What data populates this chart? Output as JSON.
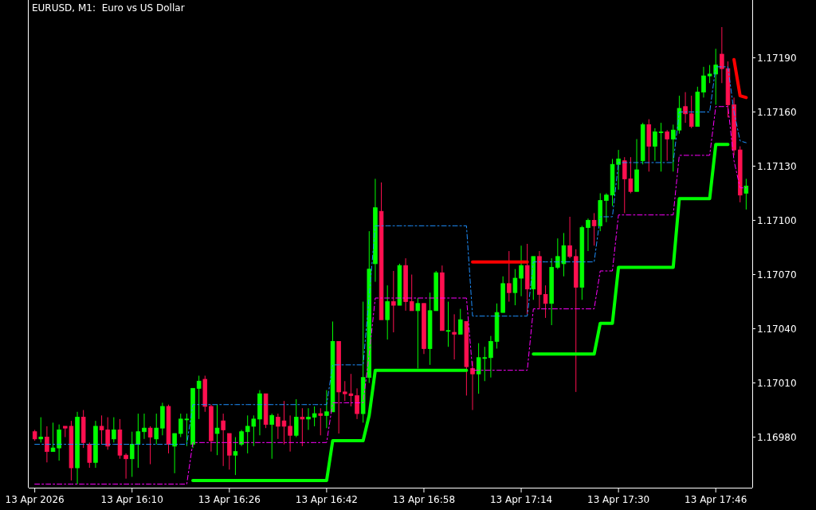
{
  "chart_data": {
    "type": "candlestick",
    "title": "EURUSD, M1:  Euro vs US Dollar",
    "x": [
      "2026-04-13T15:54",
      "2026-04-13T15:55",
      "2026-04-13T15:56",
      "2026-04-13T15:57",
      "2026-04-13T15:58",
      "2026-04-13T15:59",
      "2026-04-13T16:00",
      "2026-04-13T16:01",
      "2026-04-13T16:02",
      "2026-04-13T16:03",
      "2026-04-13T16:04",
      "2026-04-13T16:05",
      "2026-04-13T16:06",
      "2026-04-13T16:07",
      "2026-04-13T16:08",
      "2026-04-13T16:09",
      "2026-04-13T16:10",
      "2026-04-13T16:11",
      "2026-04-13T16:12",
      "2026-04-13T16:13",
      "2026-04-13T16:14",
      "2026-04-13T16:15",
      "2026-04-13T16:16",
      "2026-04-13T16:17",
      "2026-04-13T16:18",
      "2026-04-13T16:19",
      "2026-04-13T16:20",
      "2026-04-13T16:21",
      "2026-04-13T16:22",
      "2026-04-13T16:23",
      "2026-04-13T16:24",
      "2026-04-13T16:25",
      "2026-04-13T16:26",
      "2026-04-13T16:27",
      "2026-04-13T16:28",
      "2026-04-13T16:29",
      "2026-04-13T16:30",
      "2026-04-13T16:31",
      "2026-04-13T16:32",
      "2026-04-13T16:33",
      "2026-04-13T16:34",
      "2026-04-13T16:35",
      "2026-04-13T16:36",
      "2026-04-13T16:37",
      "2026-04-13T16:38",
      "2026-04-13T16:39",
      "2026-04-13T16:40",
      "2026-04-13T16:41",
      "2026-04-13T16:42",
      "2026-04-13T16:43",
      "2026-04-13T16:44",
      "2026-04-13T16:45",
      "2026-04-13T16:46",
      "2026-04-13T16:47",
      "2026-04-13T16:48",
      "2026-04-13T16:49",
      "2026-04-13T16:50",
      "2026-04-13T16:51",
      "2026-04-13T16:52",
      "2026-04-13T16:53",
      "2026-04-13T16:54",
      "2026-04-13T16:55",
      "2026-04-13T16:56",
      "2026-04-13T16:57",
      "2026-04-13T16:58",
      "2026-04-13T16:59",
      "2026-04-13T17:00",
      "2026-04-13T17:01",
      "2026-04-13T17:02",
      "2026-04-13T17:03",
      "2026-04-13T17:04",
      "2026-04-13T17:05",
      "2026-04-13T17:06",
      "2026-04-13T17:07",
      "2026-04-13T17:08",
      "2026-04-13T17:09",
      "2026-04-13T17:10",
      "2026-04-13T17:11",
      "2026-04-13T17:12",
      "2026-04-13T17:13",
      "2026-04-13T17:14",
      "2026-04-13T17:15",
      "2026-04-13T17:16",
      "2026-04-13T17:17",
      "2026-04-13T17:18",
      "2026-04-13T17:19",
      "2026-04-13T17:20",
      "2026-04-13T17:21",
      "2026-04-13T17:22",
      "2026-04-13T17:23",
      "2026-04-13T17:24",
      "2026-04-13T17:25",
      "2026-04-13T17:26",
      "2026-04-13T17:27",
      "2026-04-13T17:28",
      "2026-04-13T17:29",
      "2026-04-13T17:30",
      "2026-04-13T17:31",
      "2026-04-13T17:32",
      "2026-04-13T17:33",
      "2026-04-13T17:34",
      "2026-04-13T17:35",
      "2026-04-13T17:36",
      "2026-04-13T17:37",
      "2026-04-13T17:38",
      "2026-04-13T17:39",
      "2026-04-13T17:40",
      "2026-04-13T17:41",
      "2026-04-13T17:42",
      "2026-04-13T17:43",
      "2026-04-13T17:44",
      "2026-04-13T17:45",
      "2026-04-13T17:46",
      "2026-04-13T17:47",
      "2026-04-13T17:48",
      "2026-04-13T17:49",
      "2026-04-13T17:50",
      "2026-04-13T17:51"
    ],
    "ohlc": [
      [
        1.16983,
        1.16984,
        1.16978,
        1.16979
      ],
      [
        1.16979,
        1.16991,
        1.16977,
        1.1698
      ],
      [
        1.1698,
        1.16986,
        1.16966,
        1.16972
      ],
      [
        1.16972,
        1.16988,
        1.16972,
        1.16974
      ],
      [
        1.16974,
        1.16987,
        1.16967,
        1.16984
      ],
      [
        1.16986,
        1.16986,
        1.1698,
        1.16985
      ],
      [
        1.16986,
        1.16989,
        1.16956,
        1.16963
      ],
      [
        1.16963,
        1.16994,
        1.16954,
        1.16991
      ],
      [
        1.16991,
        1.16995,
        1.16974,
        1.16977
      ],
      [
        1.16976,
        1.16977,
        1.16963,
        1.16966
      ],
      [
        1.16966,
        1.16989,
        1.16963,
        1.16986
      ],
      [
        1.16986,
        1.16992,
        1.16976,
        1.16984
      ],
      [
        1.16984,
        1.16991,
        1.16973,
        1.16975
      ],
      [
        1.16979,
        1.16991,
        1.16977,
        1.16984
      ],
      [
        1.16984,
        1.1699,
        1.16968,
        1.1697
      ],
      [
        1.1697,
        1.16971,
        1.16957,
        1.16968
      ],
      [
        1.16968,
        1.16983,
        1.16958,
        1.16976
      ],
      [
        1.16976,
        1.16993,
        1.16963,
        1.16983
      ],
      [
        1.16983,
        1.16993,
        1.16979,
        1.16985
      ],
      [
        1.16985,
        1.16986,
        1.16965,
        1.1698
      ],
      [
        1.16979,
        1.16993,
        1.16976,
        1.16985
      ],
      [
        1.16985,
        1.16999,
        1.16981,
        1.16997
      ],
      [
        1.16997,
        1.16998,
        1.16971,
        1.16976
      ],
      [
        1.16975,
        1.16982,
        1.1696,
        1.16982
      ],
      [
        1.16982,
        1.16993,
        1.1698,
        1.1699
      ],
      [
        1.1699,
        1.16993,
        1.16975,
        1.1699
      ],
      [
        1.16976,
        1.17007,
        1.16974,
        1.17007
      ],
      [
        1.17007,
        1.17014,
        1.1699,
        1.17011
      ],
      [
        1.17012,
        1.17014,
        1.16994,
        1.16997
      ],
      [
        1.16997,
        1.16998,
        1.16972,
        1.16978
      ],
      [
        1.16982,
        1.16998,
        1.1697,
        1.16985
      ],
      [
        1.16989,
        1.16993,
        1.16964,
        1.16984
      ],
      [
        1.16982,
        1.16982,
        1.16962,
        1.1697
      ],
      [
        1.1697,
        1.1698,
        1.16959,
        1.16972
      ],
      [
        1.16976,
        1.16984,
        1.16975,
        1.16983
      ],
      [
        1.16983,
        1.16992,
        1.16971,
        1.16986
      ],
      [
        1.16986,
        1.16992,
        1.16975,
        1.1699
      ],
      [
        1.1699,
        1.17006,
        1.16981,
        1.17004
      ],
      [
        1.17004,
        1.17004,
        1.16985,
        1.16987
      ],
      [
        1.16987,
        1.16993,
        1.16968,
        1.16992
      ],
      [
        1.16991,
        1.16993,
        1.16979,
        1.16986
      ],
      [
        1.16989,
        1.17,
        1.16976,
        1.16986
      ],
      [
        1.16986,
        1.16992,
        1.16972,
        1.16981
      ],
      [
        1.16981,
        1.17001,
        1.1698,
        1.16991
      ],
      [
        1.16991,
        1.16996,
        1.16975,
        1.1699
      ],
      [
        1.1699,
        1.16996,
        1.16984,
        1.16991
      ],
      [
        1.16991,
        1.16997,
        1.16986,
        1.16993
      ],
      [
        1.16993,
        1.16996,
        1.16981,
        1.16992
      ],
      [
        1.16992,
        1.17006,
        1.16985,
        1.16994
      ],
      [
        1.16994,
        1.17044,
        1.16994,
        1.17033
      ],
      [
        1.17033,
        1.17033,
        1.16982,
        1.17005
      ],
      [
        1.17005,
        1.17011,
        1.17,
        1.17004
      ],
      [
        1.17004,
        1.17015,
        1.16997,
        1.17003
      ],
      [
        1.17003,
        1.17007,
        1.1699,
        1.16993
      ],
      [
        1.16993,
        1.17055,
        1.16988,
        1.17013
      ],
      [
        1.17013,
        1.17094,
        1.1701,
        1.17073
      ],
      [
        1.17076,
        1.17123,
        1.17066,
        1.17107
      ],
      [
        1.17105,
        1.17121,
        1.17045,
        1.17045
      ],
      [
        1.17045,
        1.17064,
        1.17034,
        1.17055
      ],
      [
        1.17055,
        1.17072,
        1.17038,
        1.17053
      ],
      [
        1.17053,
        1.17076,
        1.17053,
        1.17075
      ],
      [
        1.17075,
        1.17079,
        1.1705,
        1.17055
      ],
      [
        1.17055,
        1.1707,
        1.1705,
        1.1705
      ],
      [
        1.1705,
        1.17057,
        1.17018,
        1.17054
      ],
      [
        1.17054,
        1.17054,
        1.17026,
        1.17029
      ],
      [
        1.17029,
        1.1706,
        1.1702,
        1.1705
      ],
      [
        1.1705,
        1.17072,
        1.1705,
        1.17071
      ],
      [
        1.17071,
        1.17075,
        1.17039,
        1.17039
      ],
      [
        1.17039,
        1.17055,
        1.1703,
        1.17039
      ],
      [
        1.17038,
        1.17048,
        1.17023,
        1.17037
      ],
      [
        1.17037,
        1.17051,
        1.17037,
        1.17045
      ],
      [
        1.17044,
        1.17044,
        1.17003,
        1.17019
      ],
      [
        1.17018,
        1.17022,
        1.16995,
        1.17015
      ],
      [
        1.17015,
        1.17032,
        1.17004,
        1.17024
      ],
      [
        1.17024,
        1.1703,
        1.17011,
        1.17024
      ],
      [
        1.17024,
        1.17036,
        1.17013,
        1.17033
      ],
      [
        1.17033,
        1.17054,
        1.17029,
        1.17049
      ],
      [
        1.17049,
        1.17069,
        1.17049,
        1.17065
      ],
      [
        1.17065,
        1.17083,
        1.17055,
        1.1706
      ],
      [
        1.1706,
        1.17073,
        1.17053,
        1.17068
      ],
      [
        1.17068,
        1.17086,
        1.17058,
        1.17075
      ],
      [
        1.17075,
        1.17087,
        1.17048,
        1.17062
      ],
      [
        1.17062,
        1.1708,
        1.17056,
        1.1708
      ],
      [
        1.1708,
        1.17083,
        1.17051,
        1.17059
      ],
      [
        1.17059,
        1.17064,
        1.17046,
        1.17054
      ],
      [
        1.17054,
        1.17079,
        1.17042,
        1.17074
      ],
      [
        1.17074,
        1.1709,
        1.17073,
        1.1708
      ],
      [
        1.17076,
        1.17093,
        1.17069,
        1.17086
      ],
      [
        1.17086,
        1.17102,
        1.17079,
        1.1708
      ],
      [
        1.1708,
        1.17084,
        1.17005,
        1.17063
      ],
      [
        1.17063,
        1.17097,
        1.17056,
        1.17096
      ],
      [
        1.17096,
        1.17101,
        1.17083,
        1.171
      ],
      [
        1.171,
        1.17104,
        1.17086,
        1.17097
      ],
      [
        1.17097,
        1.17115,
        1.17094,
        1.17111
      ],
      [
        1.17111,
        1.17115,
        1.17099,
        1.17114
      ],
      [
        1.17114,
        1.17134,
        1.17108,
        1.17131
      ],
      [
        1.17131,
        1.17139,
        1.17117,
        1.17134
      ],
      [
        1.17133,
        1.17135,
        1.17104,
        1.17123
      ],
      [
        1.17123,
        1.17135,
        1.17115,
        1.17116
      ],
      [
        1.17116,
        1.17145,
        1.17116,
        1.17128
      ],
      [
        1.17133,
        1.17154,
        1.17131,
        1.17153
      ],
      [
        1.17153,
        1.17156,
        1.17127,
        1.17141
      ],
      [
        1.17141,
        1.17151,
        1.17133,
        1.17149
      ],
      [
        1.17149,
        1.17154,
        1.17127,
        1.17149
      ],
      [
        1.17149,
        1.1715,
        1.17133,
        1.17145
      ],
      [
        1.17145,
        1.17153,
        1.17127,
        1.1715
      ],
      [
        1.1715,
        1.17169,
        1.17148,
        1.17162
      ],
      [
        1.17163,
        1.17171,
        1.17154,
        1.17159
      ],
      [
        1.17159,
        1.17169,
        1.17151,
        1.17152
      ],
      [
        1.17152,
        1.17174,
        1.17152,
        1.17171
      ],
      [
        1.17171,
        1.17185,
        1.17168,
        1.1718
      ],
      [
        1.1718,
        1.17186,
        1.17176,
        1.17181
      ],
      [
        1.17181,
        1.17195,
        1.17164,
        1.17186
      ],
      [
        1.17192,
        1.17207,
        1.17176,
        1.17184
      ],
      [
        1.17184,
        1.17188,
        1.17157,
        1.17164
      ],
      [
        1.17164,
        1.17168,
        1.17136,
        1.17139
      ],
      [
        1.17139,
        1.17141,
        1.1711,
        1.17114
      ],
      [
        1.17115,
        1.17123,
        1.17106,
        1.17119
      ]
    ],
    "colors": [
      "#ff1050",
      "#00ff00",
      "#ff1050",
      "#00ff00",
      "#00ff00",
      "#ff1050",
      "#ff1050",
      "#00ff00",
      "#ff1050",
      "#ff1050",
      "#00ff00",
      "#ff1050",
      "#ff1050",
      "#00ff00",
      "#ff1050",
      "#ff1050",
      "#00ff00",
      "#00ff00",
      "#00ff00",
      "#ff1050",
      "#00ff00",
      "#00ff00",
      "#ff1050",
      "#00ff00",
      "#00ff00",
      "#00ff00",
      "#00ff00",
      "#00ff00",
      "#ff1050",
      "#ff1050",
      "#00ff00",
      "#ff1050",
      "#ff1050",
      "#00ff00",
      "#00ff00",
      "#00ff00",
      "#00ff00",
      "#00ff00",
      "#ff1050",
      "#00ff00",
      "#ff1050",
      "#ff1050",
      "#ff1050",
      "#00ff00",
      "#ff1050",
      "#00ff00",
      "#00ff00",
      "#ff1050",
      "#00ff00",
      "#00ff00",
      "#ff1050",
      "#ff1050",
      "#ff1050",
      "#ff1050",
      "#00ff00",
      "#00ff00",
      "#00ff00",
      "#ff1050",
      "#00ff00",
      "#ff1050",
      "#00ff00",
      "#ff1050",
      "#ff1050",
      "#00ff00",
      "#ff1050",
      "#00ff00",
      "#00ff00",
      "#ff1050",
      "#00ff00",
      "#ff1050",
      "#00ff00",
      "#ff1050",
      "#ff1050",
      "#00ff00",
      "#00ff00",
      "#00ff00",
      "#00ff00",
      "#00ff00",
      "#ff1050",
      "#00ff00",
      "#00ff00",
      "#ff1050",
      "#00ff00",
      "#ff1050",
      "#ff1050",
      "#00ff00",
      "#00ff00",
      "#00ff00",
      "#ff1050",
      "#ff1050",
      "#00ff00",
      "#00ff00",
      "#ff1050",
      "#00ff00",
      "#00ff00",
      "#00ff00",
      "#00ff00",
      "#ff1050",
      "#ff1050",
      "#00ff00",
      "#00ff00",
      "#ff1050",
      "#00ff00",
      "#00ff00",
      "#ff1050",
      "#00ff00",
      "#00ff00",
      "#ff1050",
      "#ff1050",
      "#00ff00",
      "#00ff00",
      "#00ff00",
      "#00ff00",
      "#ff1050",
      "#ff1050",
      "#ff1050",
      "#ff1050",
      "#00ff00"
    ],
    "series": [
      {
        "type": "line",
        "color": "#1e90ff",
        "line_style": "dashed",
        "values": [
          1.16976,
          1.16976,
          1.16976,
          1.16976,
          1.16976,
          1.16976,
          1.16976,
          1.16976,
          1.16976,
          1.16976,
          1.16976,
          1.16976,
          1.16976,
          1.16976,
          1.16976,
          1.16976,
          1.16976,
          1.16976,
          1.16976,
          1.16976,
          1.16976,
          1.16976,
          1.16976,
          1.16976,
          1.16976,
          1.16976,
          1.16998,
          1.16998,
          1.16998,
          1.16998,
          1.16998,
          1.16998,
          1.16998,
          1.16998,
          1.16998,
          1.16998,
          1.16998,
          1.16998,
          1.16998,
          1.16998,
          1.16998,
          1.16998,
          1.16998,
          1.16998,
          1.16998,
          1.16998,
          1.16998,
          1.16998,
          1.16998,
          1.1702,
          1.1702,
          1.1702,
          1.1702,
          1.1702,
          1.1702,
          1.17058,
          1.17097,
          1.17097,
          1.17097,
          1.17097,
          1.17097,
          1.17097,
          1.17097,
          1.17097,
          1.17097,
          1.17097,
          1.17097,
          1.17097,
          1.17097,
          1.17097,
          1.17097,
          1.17097,
          1.17047,
          1.17047,
          1.17047,
          1.17047,
          1.17047,
          1.17047,
          1.17047,
          1.17047,
          1.17047,
          1.17047,
          1.17077,
          1.17077,
          1.17077,
          1.17077,
          1.17077,
          1.17077,
          1.17077,
          1.17077,
          1.17077,
          1.17077,
          1.17077,
          1.17102,
          1.17102,
          1.17102,
          1.17132,
          1.17132,
          1.17132,
          1.17132,
          1.17132,
          1.17132,
          1.17132,
          1.17132,
          1.17132,
          1.17132,
          1.1716,
          1.1716,
          1.1716,
          1.1716,
          1.1716,
          1.1716,
          1.17185,
          1.17185,
          1.17185,
          1.1716,
          1.17144,
          1.17143
        ]
      },
      {
        "type": "line",
        "color": "#ff00ff",
        "line_style": "dashed",
        "values": [
          1.16954,
          1.16954,
          1.16954,
          1.16954,
          1.16954,
          1.16954,
          1.16954,
          1.16954,
          1.16954,
          1.16954,
          1.16954,
          1.16954,
          1.16954,
          1.16954,
          1.16954,
          1.16954,
          1.16954,
          1.16954,
          1.16954,
          1.16954,
          1.16954,
          1.16954,
          1.16954,
          1.16954,
          1.16954,
          1.16954,
          1.16977,
          1.16977,
          1.16977,
          1.16977,
          1.16977,
          1.16977,
          1.16977,
          1.16977,
          1.16977,
          1.16977,
          1.16977,
          1.16977,
          1.16977,
          1.16977,
          1.16977,
          1.16977,
          1.16977,
          1.16977,
          1.16977,
          1.16977,
          1.16977,
          1.16977,
          1.16977,
          1.16999,
          1.16999,
          1.16999,
          1.16999,
          1.16999,
          1.16999,
          1.17026,
          1.17057,
          1.17057,
          1.17057,
          1.17057,
          1.17057,
          1.17057,
          1.17057,
          1.17057,
          1.17057,
          1.17057,
          1.17057,
          1.17057,
          1.17057,
          1.17057,
          1.17057,
          1.17057,
          1.17017,
          1.17017,
          1.17017,
          1.17017,
          1.17017,
          1.17017,
          1.17017,
          1.17017,
          1.17017,
          1.17017,
          1.17051,
          1.17051,
          1.17051,
          1.17051,
          1.17051,
          1.17051,
          1.17051,
          1.17051,
          1.17051,
          1.17051,
          1.17051,
          1.17072,
          1.17072,
          1.17072,
          1.17103,
          1.17103,
          1.17103,
          1.17103,
          1.17103,
          1.17103,
          1.17103,
          1.17103,
          1.17103,
          1.17103,
          1.17136,
          1.17136,
          1.17136,
          1.17136,
          1.17136,
          1.17136,
          1.17163,
          1.17163,
          1.17163,
          1.17133,
          1.17118,
          1.17118
        ]
      },
      {
        "type": "line",
        "color": "#00ff00",
        "line_style": "solid",
        "values": [
          null,
          null,
          null,
          null,
          null,
          null,
          null,
          null,
          null,
          null,
          null,
          null,
          null,
          null,
          null,
          null,
          null,
          null,
          null,
          null,
          null,
          null,
          null,
          null,
          null,
          null,
          1.16956,
          1.16956,
          1.16956,
          1.16956,
          1.16956,
          1.16956,
          1.16956,
          1.16956,
          1.16956,
          1.16956,
          1.16956,
          1.16956,
          1.16956,
          1.16956,
          1.16956,
          1.16956,
          1.16956,
          1.16956,
          1.16956,
          1.16956,
          1.16956,
          1.16956,
          1.16956,
          1.16978,
          1.16978,
          1.16978,
          1.16978,
          1.16978,
          1.16978,
          1.16992,
          1.17017,
          1.17017,
          1.17017,
          1.17017,
          1.17017,
          1.17017,
          1.17017,
          1.17017,
          1.17017,
          1.17017,
          1.17017,
          1.17017,
          1.17017,
          1.17017,
          1.17017,
          1.17017,
          null,
          null,
          null,
          null,
          null,
          null,
          null,
          null,
          null,
          null,
          1.17026,
          1.17026,
          1.17026,
          1.17026,
          1.17026,
          1.17026,
          1.17026,
          1.17026,
          1.17026,
          1.17026,
          1.17026,
          1.17043,
          1.17043,
          1.17043,
          1.17074,
          1.17074,
          1.17074,
          1.17074,
          1.17074,
          1.17074,
          1.17074,
          1.17074,
          1.17074,
          1.17074,
          1.17112,
          1.17112,
          1.17112,
          1.17112,
          1.17112,
          1.17112,
          1.17142,
          1.17142,
          1.17142,
          null,
          null,
          null
        ]
      },
      {
        "type": "line",
        "color": "#ff0000",
        "line_style": "solid",
        "values": [
          null,
          null,
          null,
          null,
          null,
          null,
          null,
          null,
          null,
          null,
          null,
          null,
          null,
          null,
          null,
          null,
          null,
          null,
          null,
          null,
          null,
          null,
          null,
          null,
          null,
          null,
          null,
          null,
          null,
          null,
          null,
          null,
          null,
          null,
          null,
          null,
          null,
          null,
          null,
          null,
          null,
          null,
          null,
          null,
          null,
          null,
          null,
          null,
          null,
          null,
          null,
          null,
          null,
          null,
          null,
          null,
          null,
          null,
          null,
          null,
          null,
          null,
          null,
          null,
          null,
          null,
          null,
          null,
          null,
          null,
          null,
          null,
          1.17077,
          1.17077,
          1.17077,
          1.17077,
          1.17077,
          1.17077,
          1.17077,
          1.17077,
          1.17077,
          1.17077,
          null,
          null,
          null,
          null,
          null,
          null,
          null,
          null,
          null,
          null,
          null,
          null,
          null,
          null,
          null,
          null,
          null,
          null,
          null,
          null,
          null,
          null,
          null,
          null,
          null,
          null,
          null,
          null,
          null,
          null,
          null,
          null,
          null,
          1.17189,
          1.17169,
          1.17168
        ]
      }
    ],
    "xlim": [
      "2026-04-13T15:53",
      "2026-04-13T17:52"
    ],
    "xticks": [
      {
        "value": "2026-04-13T15:54",
        "label": "13 Apr 2026"
      },
      {
        "value": "2026-04-13T16:10",
        "label": "13 Apr 16:10"
      },
      {
        "value": "2026-04-13T16:26",
        "label": "13 Apr 16:26"
      },
      {
        "value": "2026-04-13T16:42",
        "label": "13 Apr 16:42"
      },
      {
        "value": "2026-04-13T16:58",
        "label": "13 Apr 16:58"
      },
      {
        "value": "2026-04-13T17:14",
        "label": "13 Apr 17:14"
      },
      {
        "value": "2026-04-13T17:30",
        "label": "13 Apr 17:30"
      },
      {
        "value": "2026-04-13T17:46",
        "label": "13 Apr 17:46"
      }
    ],
    "ylim": [
      1.16952,
      1.17222
    ],
    "yticks": [
      {
        "value": 1.1698,
        "label": "1.16980"
      },
      {
        "value": 1.1701,
        "label": "1.17010"
      },
      {
        "value": 1.1704,
        "label": "1.17040"
      },
      {
        "value": 1.1707,
        "label": "1.17070"
      },
      {
        "value": 1.171,
        "label": "1.17100"
      },
      {
        "value": 1.1713,
        "label": "1.17130"
      },
      {
        "value": 1.1716,
        "label": "1.17160"
      },
      {
        "value": 1.1719,
        "label": "1.17190"
      }
    ]
  }
}
